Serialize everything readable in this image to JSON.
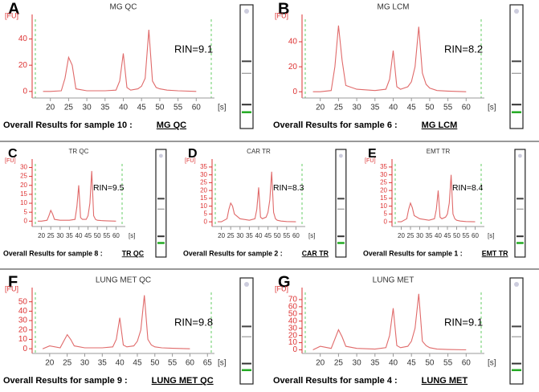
{
  "chart_data": [
    {
      "type": "line",
      "panel": "A",
      "title": "MG QC",
      "annotation": "RIN=9.1",
      "y_label": "[FU]",
      "x_label": "[s]",
      "footer": "Overall Results for sample 10 :",
      "sample_name": "MG QC",
      "color": "#e06a6a",
      "xlim": [
        15,
        65
      ],
      "xticks": [
        20,
        25,
        30,
        35,
        40,
        45,
        50,
        55,
        60
      ],
      "ylim": [
        -5,
        55
      ],
      "yticks": [
        0,
        20,
        40
      ],
      "x": [
        18,
        20,
        23,
        24,
        25,
        26,
        27,
        30,
        35,
        38,
        39,
        40,
        41,
        42,
        44,
        45,
        46,
        47,
        48,
        49,
        50,
        52,
        55,
        60
      ],
      "values": [
        0,
        0,
        0.5,
        10,
        26,
        20,
        2,
        0.5,
        0.5,
        1,
        8,
        29,
        3,
        1,
        2,
        4,
        10,
        47,
        8,
        3,
        2,
        1,
        0.5,
        0
      ]
    },
    {
      "type": "line",
      "panel": "B",
      "title": "MG LCM",
      "annotation": "RIN=8.2",
      "y_label": "[FU]",
      "x_label": "[s]",
      "footer": "Overall Results for sample 6 :",
      "sample_name": "MG LCM",
      "color": "#e06a6a",
      "xlim": [
        15,
        65
      ],
      "xticks": [
        20,
        25,
        30,
        35,
        40,
        45,
        50,
        55,
        60
      ],
      "ylim": [
        -5,
        58
      ],
      "yticks": [
        0,
        20,
        40
      ],
      "x": [
        18,
        20,
        23,
        24,
        25,
        26,
        27,
        30,
        35,
        38,
        39,
        40,
        41,
        42,
        44,
        45,
        46,
        47,
        48,
        49,
        50,
        52,
        55,
        60
      ],
      "values": [
        0,
        0,
        1,
        20,
        53,
        25,
        5,
        2,
        1,
        2,
        10,
        33,
        4,
        2,
        4,
        8,
        20,
        52,
        15,
        6,
        3,
        1,
        0.5,
        0
      ]
    },
    {
      "type": "line",
      "panel": "C",
      "title": "TR QC",
      "annotation": "RIN=9.5",
      "y_label": "[FU]",
      "x_label": "[s]",
      "footer": "Overall Results for sample 8 :",
      "sample_name": "TR QC",
      "color": "#e06a6a",
      "xlim": [
        15,
        65
      ],
      "xticks": [
        20,
        25,
        30,
        35,
        40,
        45,
        50,
        55,
        60
      ],
      "ylim": [
        -3,
        32
      ],
      "yticks": [
        0,
        5,
        10,
        15,
        20,
        25,
        30
      ],
      "x": [
        18,
        20,
        23,
        24,
        25,
        26,
        27,
        30,
        35,
        38,
        39,
        40,
        41,
        42,
        44,
        45,
        46,
        47,
        48,
        49,
        50,
        52,
        55,
        60
      ],
      "values": [
        0,
        0,
        0.5,
        3,
        6,
        4,
        1,
        0.5,
        0.5,
        1,
        8,
        20,
        2,
        1,
        1,
        3,
        10,
        28,
        3,
        1,
        0.5,
        0.3,
        0.2,
        0
      ]
    },
    {
      "type": "line",
      "panel": "D",
      "title": "CAR TR",
      "annotation": "RIN=8.3",
      "y_label": "[FU]",
      "x_label": "[s]",
      "footer": "Overall Results for sample 2 :",
      "sample_name": "CAR TR",
      "color": "#e06a6a",
      "xlim": [
        15,
        65
      ],
      "xticks": [
        20,
        25,
        30,
        35,
        40,
        45,
        50,
        55,
        60
      ],
      "ylim": [
        -3,
        37
      ],
      "yticks": [
        0,
        5,
        10,
        15,
        20,
        25,
        30,
        35
      ],
      "x": [
        18,
        20,
        23,
        24,
        25,
        26,
        27,
        30,
        35,
        38,
        39,
        40,
        41,
        42,
        44,
        45,
        46,
        47,
        48,
        49,
        50,
        52,
        55,
        60
      ],
      "values": [
        0,
        0,
        2,
        8,
        12,
        10,
        5,
        2,
        1,
        2,
        8,
        22,
        3,
        2,
        3,
        6,
        14,
        32,
        6,
        2,
        1,
        0.5,
        0.2,
        0
      ]
    },
    {
      "type": "line",
      "panel": "E",
      "title": "EMT TR",
      "annotation": "RIN=8.4",
      "y_label": "[FU]",
      "x_label": "[s]",
      "footer": "Overall Results for sample 1 :",
      "sample_name": "EMT TR",
      "color": "#e06a6a",
      "xlim": [
        15,
        65
      ],
      "xticks": [
        20,
        25,
        30,
        35,
        40,
        45,
        50,
        55,
        60
      ],
      "ylim": [
        -3,
        37
      ],
      "yticks": [
        0,
        5,
        10,
        15,
        20,
        25,
        30,
        35
      ],
      "x": [
        18,
        20,
        23,
        24,
        25,
        26,
        27,
        30,
        35,
        38,
        39,
        40,
        41,
        42,
        44,
        45,
        46,
        47,
        48,
        49,
        50,
        52,
        55,
        60
      ],
      "values": [
        0,
        0,
        2,
        8,
        12,
        9,
        4,
        2,
        1,
        2,
        8,
        20,
        3,
        2,
        3,
        5,
        12,
        30,
        5,
        2,
        1,
        0.5,
        0.2,
        0
      ]
    },
    {
      "type": "line",
      "panel": "F",
      "title": "LUNG MET QC",
      "annotation": "RIN=9.8",
      "y_label": "[FU]",
      "x_label": "[s]",
      "footer": "Overall Results for sample 9 :",
      "sample_name": "LUNG MET QC",
      "color": "#e06a6a",
      "xlim": [
        15,
        67
      ],
      "xticks": [
        20,
        25,
        30,
        35,
        40,
        45,
        50,
        55,
        60,
        65
      ],
      "ylim": [
        -5,
        60
      ],
      "yticks": [
        0,
        10,
        20,
        30,
        40,
        50
      ],
      "x": [
        18,
        20,
        23,
        24,
        25,
        26,
        27,
        30,
        35,
        38,
        39,
        40,
        41,
        42,
        44,
        45,
        46,
        47,
        48,
        49,
        50,
        52,
        55,
        60
      ],
      "values": [
        0,
        3,
        1,
        8,
        15,
        10,
        3,
        1,
        1,
        2,
        10,
        33,
        4,
        2,
        3,
        8,
        20,
        57,
        10,
        4,
        2,
        1,
        0.5,
        0
      ]
    },
    {
      "type": "line",
      "panel": "G",
      "title": "LUNG MET",
      "annotation": "RIN=9.1",
      "y_label": "[FU]",
      "x_label": "[s]",
      "footer": "Overall Results for sample 4 :",
      "sample_name": "LUNG MET",
      "color": "#e06a6a",
      "xlim": [
        15,
        65
      ],
      "xticks": [
        20,
        25,
        30,
        35,
        40,
        45,
        50,
        55,
        60
      ],
      "ylim": [
        -5,
        80
      ],
      "yticks": [
        0,
        10,
        20,
        30,
        40,
        50,
        60,
        70
      ],
      "x": [
        18,
        20,
        23,
        24,
        25,
        26,
        27,
        30,
        35,
        38,
        39,
        40,
        41,
        42,
        44,
        45,
        46,
        47,
        48,
        49,
        50,
        52,
        55,
        60
      ],
      "values": [
        0,
        5,
        2,
        15,
        28,
        18,
        5,
        2,
        1,
        3,
        20,
        58,
        6,
        3,
        5,
        12,
        30,
        78,
        12,
        6,
        3,
        1,
        0.5,
        0
      ]
    }
  ]
}
